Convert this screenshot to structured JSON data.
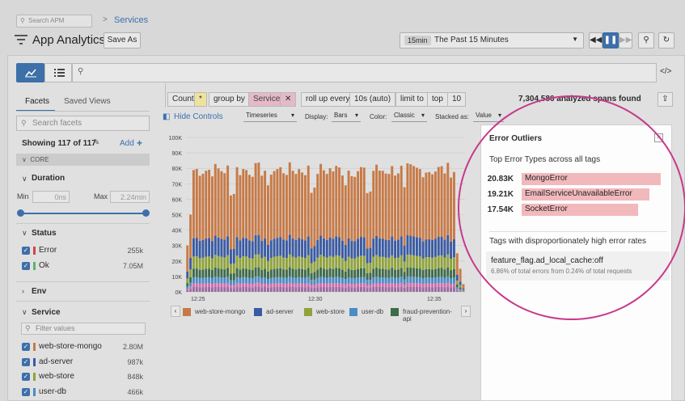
{
  "header": {
    "search_placeholder": "Search APM",
    "breadcrumb_sep": ">",
    "breadcrumb_services": "Services",
    "title": "App Analytics",
    "save_as": "Save As",
    "time_badge": "15min",
    "time_label": "The Past 15 Minutes"
  },
  "sidebar": {
    "tab_facets": "Facets",
    "tab_saved": "Saved Views",
    "search_placeholder": "Search facets",
    "showing": "Showing 117 of 117",
    "add": "Add",
    "core": "CORE",
    "duration": {
      "title": "Duration",
      "min_label": "Min",
      "min_value": "0ns",
      "max_label": "Max",
      "max_value": "2.24min"
    },
    "status": {
      "title": "Status",
      "items": [
        {
          "label": "Error",
          "count": "255k",
          "color": "#d64545"
        },
        {
          "label": "Ok",
          "count": "7.05M",
          "color": "#5fb36a"
        }
      ]
    },
    "env": {
      "title": "Env"
    },
    "service": {
      "title": "Service",
      "filter_placeholder": "Filter values",
      "items": [
        {
          "label": "web-store-mongo",
          "count": "2.80M",
          "color": "#c77a47"
        },
        {
          "label": "ad-server",
          "count": "987k",
          "color": "#3a5ba3"
        },
        {
          "label": "web-store",
          "count": "848k",
          "color": "#8fa33a"
        },
        {
          "label": "user-db",
          "count": "466k",
          "color": "#4a8cc4"
        }
      ]
    }
  },
  "controls": {
    "count": "Count",
    "star": "*",
    "group_by": "group by",
    "service": "Service",
    "close": "✕",
    "roll_up": "roll up every",
    "roll_val": "10s (auto)",
    "limit_to": "limit to",
    "top": "top",
    "top_n": "10",
    "analyzed": "7,304,586 analyzed spans found",
    "hide_controls": "Hide Controls",
    "viz": "Timeseries",
    "display_label": "Display:",
    "display": "Bars",
    "color_label": "Color:",
    "color": "Classic",
    "stacked_label": "Stacked as:",
    "stacked": "Value"
  },
  "outliers": {
    "title": "Error Outliers",
    "subtitle": "Top Error Types across all tags",
    "errors": [
      {
        "value": "20.83K",
        "label": "MongoError",
        "frac": 1.0
      },
      {
        "value": "19.21K",
        "label": "EmailServiceUnavailableError",
        "frac": 0.92
      },
      {
        "value": "17.54K",
        "label": "SocketError",
        "frac": 0.84
      }
    ],
    "tags_title": "Tags with disproportionately high error rates",
    "tag_name": "feature_flag.ad_local_cache:off",
    "tag_desc": "6.86% of total errors from 0.24% of total requests"
  },
  "legend": {
    "items": [
      {
        "label": "web-store-mongo",
        "color": "#c77a47"
      },
      {
        "label": "ad-server",
        "color": "#3a5ba3"
      },
      {
        "label": "web-store",
        "color": "#8fa33a"
      },
      {
        "label": "user-db",
        "color": "#4a8cc4"
      },
      {
        "label": "fraud-prevention-api",
        "color": "#3e6b4a"
      }
    ]
  },
  "chart_data": {
    "type": "bar",
    "ylim": [
      0,
      100000
    ],
    "yticks": [
      "0K",
      "10K",
      "20K",
      "30K",
      "40K",
      "50K",
      "60K",
      "70K",
      "80K",
      "90K",
      "100K"
    ],
    "xticks": [
      "12:25",
      "12:30",
      "12:35"
    ],
    "bar_count": 90,
    "series_colors": [
      "#9a6aa0",
      "#d46db0",
      "#4a8cc4",
      "#3e6b4a",
      "#8fa33a",
      "#3a5ba3",
      "#c77a47"
    ],
    "series_shares": [
      0.04,
      0.03,
      0.05,
      0.07,
      0.1,
      0.15,
      0.56
    ]
  }
}
